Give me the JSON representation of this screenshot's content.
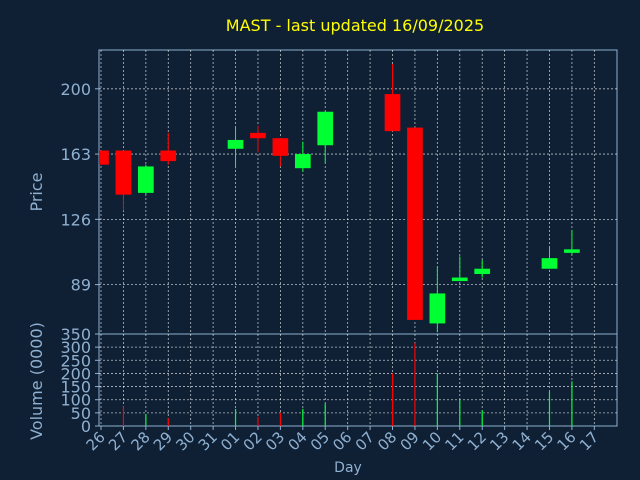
{
  "colors": {
    "background": "#0f2035",
    "axis_text": "#8fb0d0",
    "title": "#ffff00",
    "frame": "#8fb0d0",
    "grid": "#ffffff",
    "up": "#00ff33",
    "down": "#ff0000"
  },
  "chart_data": [
    {
      "type": "candlestick",
      "title": "MAST - last updated 16/09/2025",
      "ylabel": "Price",
      "ylim": [
        61,
        222
      ],
      "yticks": [
        89,
        126,
        163,
        200
      ],
      "grid": true,
      "categories": [
        "26",
        "27",
        "28",
        "29",
        "30",
        "31",
        "01",
        "02",
        "03",
        "04",
        "05",
        "06",
        "07",
        "08",
        "09",
        "10",
        "11",
        "12",
        "13",
        "14",
        "15",
        "16",
        "17"
      ],
      "candles": [
        {
          "day": "26",
          "open": 165,
          "close": 157,
          "high": 165,
          "low": 157
        },
        {
          "day": "27",
          "open": 165,
          "close": 140,
          "high": 165,
          "low": 131
        },
        {
          "day": "28",
          "open": 141,
          "close": 156,
          "high": 157,
          "low": 140
        },
        {
          "day": "29",
          "open": 165,
          "close": 159,
          "high": 175,
          "low": 157
        },
        {
          "day": "01",
          "open": 166,
          "close": 171,
          "high": 178,
          "low": 155
        },
        {
          "day": "02",
          "open": 175,
          "close": 172,
          "high": 179,
          "low": 164
        },
        {
          "day": "03",
          "open": 172,
          "close": 162,
          "high": 172,
          "low": 156
        },
        {
          "day": "04",
          "open": 155,
          "close": 163,
          "high": 170,
          "low": 153
        },
        {
          "day": "05",
          "open": 168,
          "close": 187,
          "high": 187,
          "low": 158
        },
        {
          "day": "08",
          "open": 197,
          "close": 176,
          "high": 214,
          "low": 176
        },
        {
          "day": "09",
          "open": 178,
          "close": 69,
          "high": 178,
          "low": 69
        },
        {
          "day": "10",
          "open": 67,
          "close": 84,
          "high": 99,
          "low": 62
        },
        {
          "day": "11",
          "open": 91,
          "close": 93,
          "high": 105,
          "low": 91
        },
        {
          "day": "12",
          "open": 95,
          "close": 98,
          "high": 103,
          "low": 93
        },
        {
          "day": "15",
          "open": 98,
          "close": 104,
          "high": 110,
          "low": 98
        },
        {
          "day": "16",
          "open": 107,
          "close": 109,
          "high": 120,
          "low": 106
        }
      ]
    },
    {
      "type": "bar",
      "ylabel": "Volume (0000)",
      "xlabel": "Day",
      "ylim": [
        0,
        350
      ],
      "yticks": [
        0,
        50,
        100,
        150,
        200,
        250,
        300,
        350
      ],
      "grid": true,
      "values": [
        {
          "day": "27",
          "value": 75,
          "dir": "down"
        },
        {
          "day": "28",
          "value": 45,
          "dir": "up"
        },
        {
          "day": "29",
          "value": 30,
          "dir": "down"
        },
        {
          "day": "01",
          "value": 65,
          "dir": "up"
        },
        {
          "day": "02",
          "value": 35,
          "dir": "down"
        },
        {
          "day": "03",
          "value": 50,
          "dir": "down"
        },
        {
          "day": "04",
          "value": 65,
          "dir": "up"
        },
        {
          "day": "05",
          "value": 85,
          "dir": "up"
        },
        {
          "day": "08",
          "value": 200,
          "dir": "down"
        },
        {
          "day": "09",
          "value": 315,
          "dir": "down"
        },
        {
          "day": "10",
          "value": 200,
          "dir": "up"
        },
        {
          "day": "11",
          "value": 100,
          "dir": "up"
        },
        {
          "day": "12",
          "value": 60,
          "dir": "up"
        },
        {
          "day": "15",
          "value": 130,
          "dir": "up"
        },
        {
          "day": "16",
          "value": 170,
          "dir": "up"
        }
      ]
    }
  ]
}
